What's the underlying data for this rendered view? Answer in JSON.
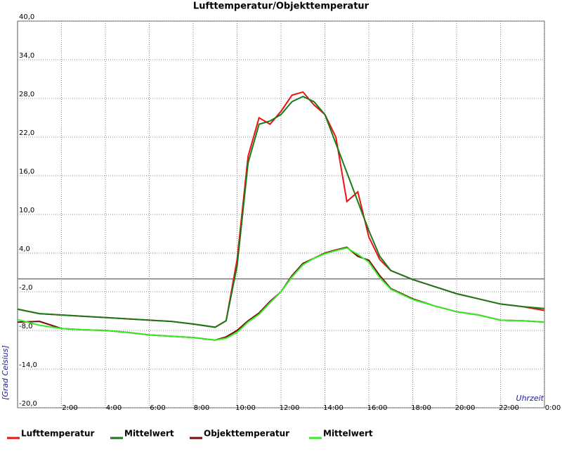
{
  "chart_data": {
    "type": "line",
    "title": "Lufttemperatur/Objekttemperatur",
    "y_label": "[Grad Celsius]",
    "x_label": "Uhrzeit",
    "x": [
      0,
      1,
      2,
      3,
      4,
      5,
      6,
      7,
      8,
      9,
      9.5,
      10,
      10.5,
      11,
      11.5,
      12,
      12.5,
      13,
      13.5,
      14,
      14.5,
      15,
      15.5,
      16,
      16.5,
      17,
      18,
      19,
      20,
      21,
      22,
      23,
      24
    ],
    "series": [
      {
        "name": "Lufttemperatur",
        "color": "#ee1111",
        "values": [
          -4.7,
          -5.4,
          -5.6,
          -5.8,
          -6,
          -6.2,
          -6.4,
          -6.6,
          -7,
          -7.5,
          -6.5,
          3,
          19,
          25,
          24,
          26,
          28.5,
          29,
          27,
          25.5,
          22,
          12,
          13.5,
          6.5,
          3,
          1.3,
          -0.1,
          -1.2,
          -2.3,
          -3.1,
          -3.9,
          -4.3,
          -4.9
        ]
      },
      {
        "name": "Mittelwert",
        "color": "#1a7a1a",
        "values": [
          -4.7,
          -5.4,
          -5.6,
          -5.8,
          -6,
          -6.2,
          -6.4,
          -6.6,
          -7,
          -7.5,
          -6.5,
          2,
          18,
          24,
          24.5,
          25.5,
          27.5,
          28.3,
          27.5,
          25.5,
          21,
          16.5,
          12,
          7.5,
          3.5,
          1.3,
          -0.1,
          -1.2,
          -2.3,
          -3.1,
          -3.9,
          -4.3,
          -4.6
        ]
      },
      {
        "name": "Objekttemperatur",
        "color": "#7a0a0a",
        "values": [
          -6.7,
          -6.6,
          -7.7,
          -7.9,
          -8,
          -8.3,
          -8.7,
          -8.9,
          -9.1,
          -9.5,
          -9,
          -8,
          -6.5,
          -5.3,
          -3.5,
          -2,
          0.5,
          2.4,
          3.2,
          4,
          4.5,
          4.9,
          3.5,
          2.9,
          0.5,
          -1.5,
          -3.1,
          -4.2,
          -5.1,
          -5.6,
          -6.4,
          -6.5,
          -6.7
        ]
      },
      {
        "name": "Mittelwert",
        "color": "#33ee22",
        "values": [
          -6.3,
          -7.2,
          -7.7,
          -7.9,
          -8,
          -8.3,
          -8.7,
          -8.9,
          -9.1,
          -9.5,
          -9.2,
          -8.3,
          -6.7,
          -5.5,
          -3.7,
          -2,
          0.3,
          2.2,
          3.2,
          3.9,
          4.4,
          4.8,
          3.8,
          2.6,
          0.2,
          -1.6,
          -3.2,
          -4.2,
          -5.1,
          -5.6,
          -6.4,
          -6.5,
          -6.7
        ]
      }
    ],
    "xlim": [
      0,
      24
    ],
    "xticks": [
      {
        "value": 2,
        "label": "2:00"
      },
      {
        "value": 4,
        "label": "4:00"
      },
      {
        "value": 6,
        "label": "6:00"
      },
      {
        "value": 8,
        "label": "8:00"
      },
      {
        "value": 10,
        "label": "10:00"
      },
      {
        "value": 12,
        "label": "12:00"
      },
      {
        "value": 14,
        "label": "14:00"
      },
      {
        "value": 16,
        "label": "16:00"
      },
      {
        "value": 18,
        "label": "18:00"
      },
      {
        "value": 20,
        "label": "20:00"
      },
      {
        "value": 22,
        "label": "22:00"
      },
      {
        "value": 24,
        "label": "0:00"
      }
    ],
    "ylim": [
      -20,
      40
    ],
    "yticks": [
      {
        "value": -20,
        "label": "-20,0"
      },
      {
        "value": -14,
        "label": "-14,0"
      },
      {
        "value": -8,
        "label": "-8,0"
      },
      {
        "value": -2,
        "label": "-2,0"
      },
      {
        "value": 4,
        "label": "4,0"
      },
      {
        "value": 10,
        "label": "10,0"
      },
      {
        "value": 16,
        "label": "16,0"
      },
      {
        "value": 22,
        "label": "22,0"
      },
      {
        "value": 28,
        "label": "28,0"
      },
      {
        "value": 34,
        "label": "34,0"
      },
      {
        "value": 40,
        "label": "40,0"
      }
    ],
    "grid": true
  }
}
